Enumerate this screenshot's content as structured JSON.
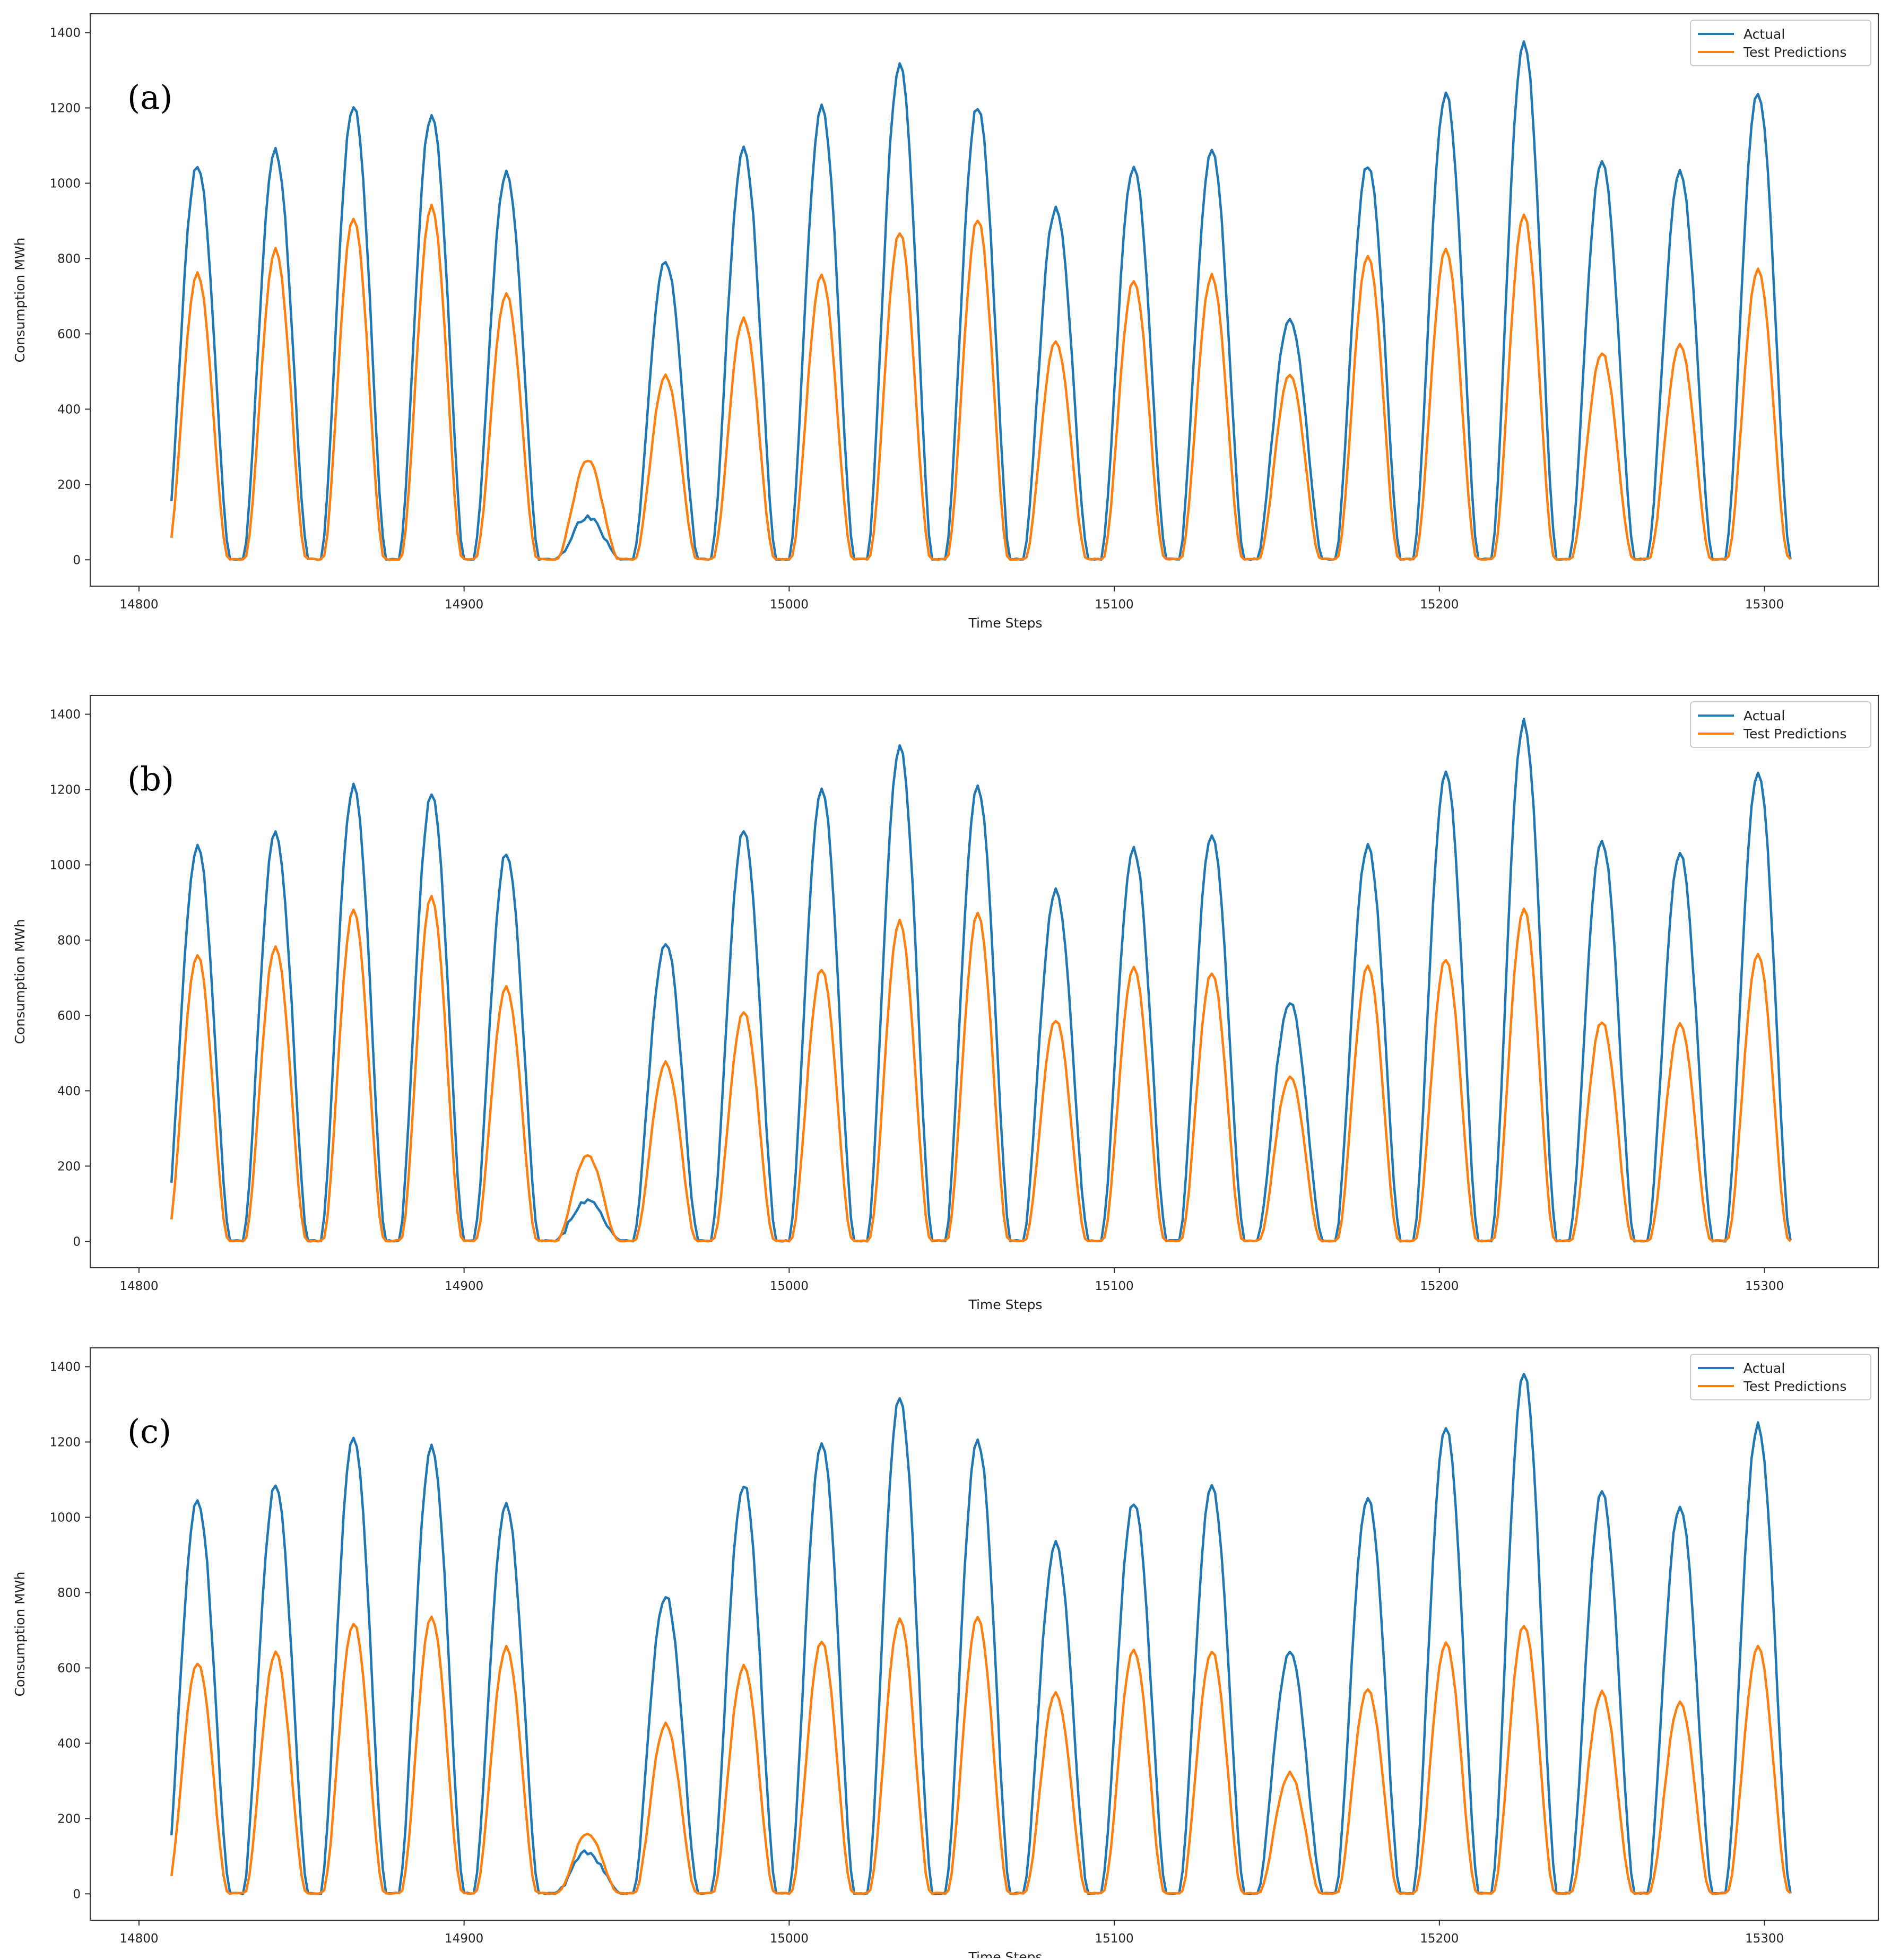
{
  "colors": {
    "actual": "#1f77b4",
    "predicted": "#ff7f0e"
  },
  "chart_data": [
    {
      "type": "line",
      "panel_label": "(a)",
      "xlabel": "Time Steps",
      "ylabel": "Consumption MWh",
      "xlim": [
        14785,
        15335
      ],
      "ylim": [
        -70,
        1450
      ],
      "x_ticks": [
        "14800",
        "14900",
        "15000",
        "15100",
        "15200",
        "15300"
      ],
      "y_ticks": [
        "0",
        "200",
        "400",
        "600",
        "800",
        "1000",
        "1200",
        "1400"
      ],
      "grid": false,
      "legend_position": "top-right",
      "x_start": 14810,
      "x_end": 15308,
      "cycles": [
        {
          "c": 14818,
          "a": 1050,
          "p": 760
        },
        {
          "c": 14842,
          "a": 1085,
          "p": 825
        },
        {
          "c": 14866,
          "a": 1210,
          "p": 910
        },
        {
          "c": 14890,
          "a": 1185,
          "p": 940
        },
        {
          "c": 14913,
          "a": 1030,
          "p": 705
        },
        {
          "c": 14938,
          "a": 110,
          "p": 265
        },
        {
          "c": 14962,
          "a": 795,
          "p": 490
        },
        {
          "c": 14986,
          "a": 1090,
          "p": 640
        },
        {
          "c": 15010,
          "a": 1200,
          "p": 755
        },
        {
          "c": 15034,
          "a": 1315,
          "p": 870
        },
        {
          "c": 15058,
          "a": 1205,
          "p": 905
        },
        {
          "c": 15082,
          "a": 930,
          "p": 580
        },
        {
          "c": 15106,
          "a": 1040,
          "p": 740
        },
        {
          "c": 15130,
          "a": 1085,
          "p": 755
        },
        {
          "c": 15154,
          "a": 640,
          "p": 490
        },
        {
          "c": 15178,
          "a": 1050,
          "p": 810
        },
        {
          "c": 15202,
          "a": 1240,
          "p": 825
        },
        {
          "c": 15226,
          "a": 1380,
          "p": 915
        },
        {
          "c": 15250,
          "a": 1065,
          "p": 550
        },
        {
          "c": 15274,
          "a": 1030,
          "p": 575
        },
        {
          "c": 15298,
          "a": 1245,
          "p": 770
        }
      ],
      "series": [
        {
          "name": "Actual"
        },
        {
          "name": "Test Predictions"
        }
      ]
    },
    {
      "type": "line",
      "panel_label": "(b)",
      "xlabel": "Time Steps",
      "ylabel": "Consumption MWh",
      "xlim": [
        14785,
        15335
      ],
      "ylim": [
        -70,
        1450
      ],
      "x_ticks": [
        "14800",
        "14900",
        "15000",
        "15100",
        "15200",
        "15300"
      ],
      "y_ticks": [
        "0",
        "200",
        "400",
        "600",
        "800",
        "1000",
        "1200",
        "1400"
      ],
      "grid": false,
      "legend_position": "top-right",
      "x_start": 14810,
      "x_end": 15308,
      "cycles": [
        {
          "c": 14818,
          "a": 1050,
          "p": 760
        },
        {
          "c": 14842,
          "a": 1085,
          "p": 785
        },
        {
          "c": 14866,
          "a": 1210,
          "p": 880
        },
        {
          "c": 14890,
          "a": 1185,
          "p": 915
        },
        {
          "c": 14913,
          "a": 1030,
          "p": 675
        },
        {
          "c": 14938,
          "a": 110,
          "p": 230
        },
        {
          "c": 14962,
          "a": 795,
          "p": 475
        },
        {
          "c": 14986,
          "a": 1090,
          "p": 610
        },
        {
          "c": 15010,
          "a": 1200,
          "p": 725
        },
        {
          "c": 15034,
          "a": 1315,
          "p": 850
        },
        {
          "c": 15058,
          "a": 1205,
          "p": 870
        },
        {
          "c": 15082,
          "a": 930,
          "p": 590
        },
        {
          "c": 15106,
          "a": 1040,
          "p": 725
        },
        {
          "c": 15130,
          "a": 1085,
          "p": 715
        },
        {
          "c": 15154,
          "a": 640,
          "p": 440
        },
        {
          "c": 15178,
          "a": 1050,
          "p": 730
        },
        {
          "c": 15202,
          "a": 1240,
          "p": 750
        },
        {
          "c": 15226,
          "a": 1380,
          "p": 885
        },
        {
          "c": 15250,
          "a": 1065,
          "p": 585
        },
        {
          "c": 15274,
          "a": 1030,
          "p": 575
        },
        {
          "c": 15298,
          "a": 1245,
          "p": 765
        }
      ],
      "series": [
        {
          "name": "Actual"
        },
        {
          "name": "Test Predictions"
        }
      ]
    },
    {
      "type": "line",
      "panel_label": "(c)",
      "xlabel": "Time Steps",
      "ylabel": "Consumption MWh",
      "xlim": [
        14785,
        15335
      ],
      "ylim": [
        -70,
        1450
      ],
      "x_ticks": [
        "14800",
        "14900",
        "15000",
        "15100",
        "15200",
        "15300"
      ],
      "y_ticks": [
        "0",
        "200",
        "400",
        "600",
        "800",
        "1000",
        "1200",
        "1400"
      ],
      "grid": false,
      "legend_position": "top-right",
      "x_start": 14810,
      "x_end": 15308,
      "cycles": [
        {
          "c": 14818,
          "a": 1050,
          "p": 615
        },
        {
          "c": 14842,
          "a": 1085,
          "p": 640
        },
        {
          "c": 14866,
          "a": 1210,
          "p": 720
        },
        {
          "c": 14890,
          "a": 1185,
          "p": 735
        },
        {
          "c": 14913,
          "a": 1030,
          "p": 655
        },
        {
          "c": 14938,
          "a": 110,
          "p": 160
        },
        {
          "c": 14962,
          "a": 795,
          "p": 450
        },
        {
          "c": 14986,
          "a": 1090,
          "p": 605
        },
        {
          "c": 15010,
          "a": 1200,
          "p": 670
        },
        {
          "c": 15034,
          "a": 1315,
          "p": 730
        },
        {
          "c": 15058,
          "a": 1205,
          "p": 735
        },
        {
          "c": 15082,
          "a": 930,
          "p": 535
        },
        {
          "c": 15106,
          "a": 1040,
          "p": 650
        },
        {
          "c": 15130,
          "a": 1085,
          "p": 645
        },
        {
          "c": 15154,
          "a": 640,
          "p": 320
        },
        {
          "c": 15178,
          "a": 1050,
          "p": 545
        },
        {
          "c": 15202,
          "a": 1240,
          "p": 665
        },
        {
          "c": 15226,
          "a": 1380,
          "p": 715
        },
        {
          "c": 15250,
          "a": 1065,
          "p": 535
        },
        {
          "c": 15274,
          "a": 1030,
          "p": 510
        },
        {
          "c": 15298,
          "a": 1245,
          "p": 655
        }
      ],
      "series": [
        {
          "name": "Actual"
        },
        {
          "name": "Test Predictions"
        }
      ]
    }
  ]
}
